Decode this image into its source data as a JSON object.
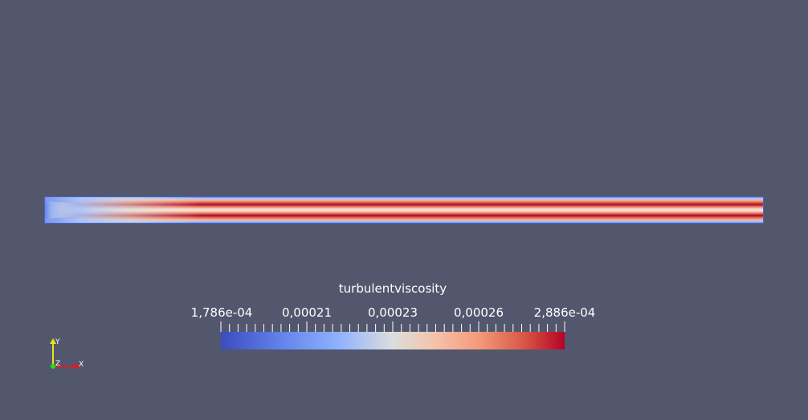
{
  "scene": {
    "background_color": "#52576e"
  },
  "field": {
    "colormap": "cool-to-warm",
    "low_color": "#3b4cc0",
    "high_color": "#b40426"
  },
  "colorbar": {
    "title": "turbulentviscosity",
    "range": [
      0.0001786,
      0.0002886
    ],
    "tick_labels": [
      {
        "label": "1,786e-04",
        "value": 0.0001786
      },
      {
        "label": "0,00021",
        "value": 0.00021
      },
      {
        "label": "0,00023",
        "value": 0.00023
      },
      {
        "label": "0,00026",
        "value": 0.00026
      },
      {
        "label": "2,886e-04",
        "value": 0.0002886
      }
    ]
  },
  "orientation_axes": {
    "y_label": "Y",
    "z_label": "Z",
    "x_label": "X",
    "y_color": "#e6e61a",
    "x_color": "#e61a1a",
    "z_color": "#1ae61a"
  }
}
